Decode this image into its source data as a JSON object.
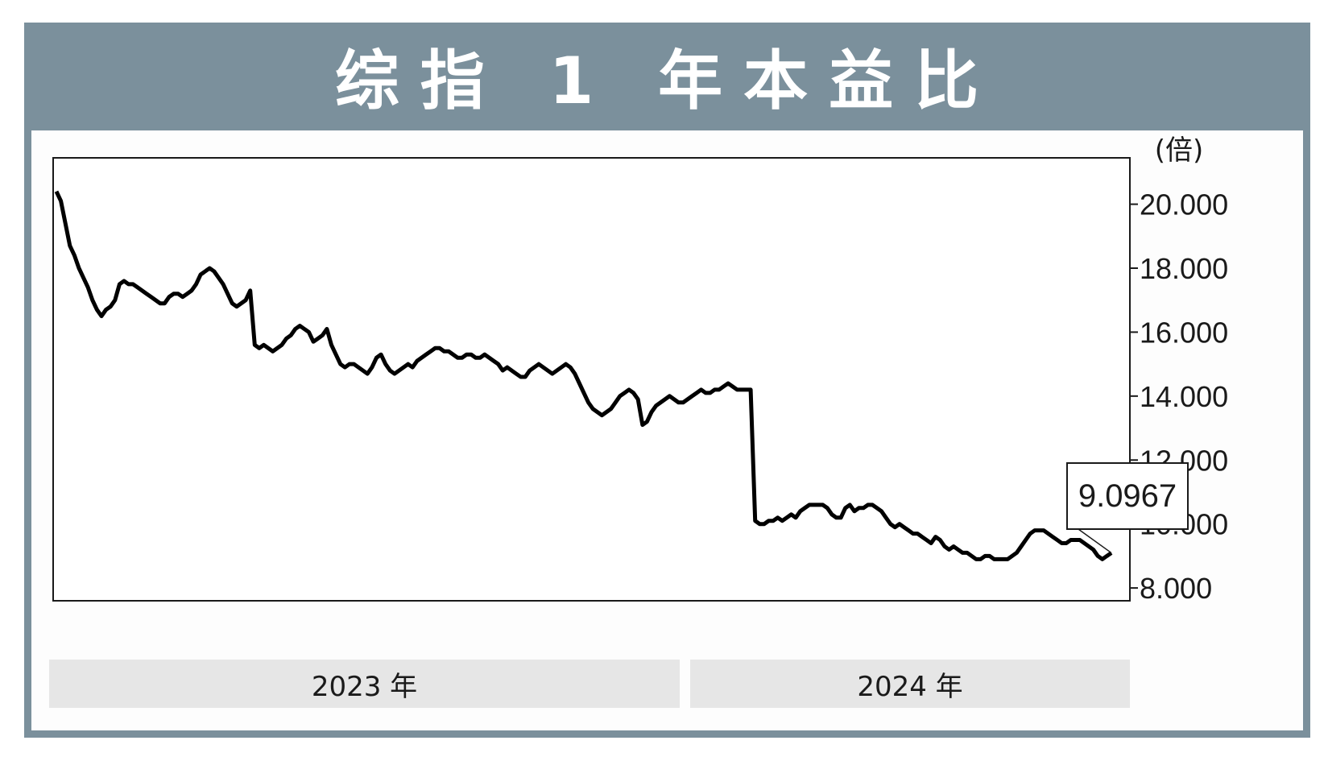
{
  "header": {
    "title": "综指 1 年本益比"
  },
  "callout": {
    "value": "9.0967"
  },
  "colors": {
    "frame": "#7b909c",
    "line": "#000000",
    "year_band": "#e6e6e6"
  },
  "chart_data": {
    "type": "line",
    "title": "综指 1 年本益比",
    "ylabel": "(倍)",
    "ylim": [
      7.6,
      21.45
    ],
    "y_ticks": [
      8,
      10,
      12,
      14,
      16,
      18,
      20
    ],
    "y_tick_labels": [
      "8.000",
      "10.000",
      "12.000",
      "14.000",
      "16.000",
      "18.000",
      "20.000"
    ],
    "x_period_labels": [
      "2023 年",
      "2024 年"
    ],
    "annotation": "9.0967",
    "grid": false,
    "y_axis_position": "right",
    "series": [
      {
        "values": [
          20.4,
          20.1,
          19.4,
          18.7,
          18.4,
          18.0,
          17.7,
          17.4,
          17.0,
          16.7,
          16.5,
          16.7,
          16.8,
          17.0,
          17.5,
          17.6,
          17.5,
          17.5,
          17.4,
          17.3,
          17.2,
          17.1,
          17.0,
          16.9,
          16.9,
          17.1,
          17.2,
          17.2,
          17.1,
          17.2,
          17.3,
          17.5,
          17.8,
          17.9,
          18.0,
          17.9,
          17.7,
          17.5,
          17.2,
          16.9,
          16.8,
          16.9,
          17.0,
          17.3,
          15.6,
          15.5,
          15.6,
          15.5,
          15.4,
          15.5,
          15.6,
          15.8,
          15.9,
          16.1,
          16.2,
          16.1,
          16.0,
          15.7,
          15.8,
          15.9,
          16.1,
          15.6,
          15.3,
          15.0,
          14.9,
          15.0,
          15.0,
          14.9,
          14.8,
          14.7,
          14.9,
          15.2,
          15.3,
          15.0,
          14.8,
          14.7,
          14.8,
          14.9,
          15.0,
          14.9,
          15.1,
          15.2,
          15.3,
          15.4,
          15.5,
          15.5,
          15.4,
          15.4,
          15.3,
          15.2,
          15.2,
          15.3,
          15.3,
          15.2,
          15.2,
          15.3,
          15.2,
          15.1,
          15.0,
          14.8,
          14.9,
          14.8,
          14.7,
          14.6,
          14.6,
          14.8,
          14.9,
          15.0,
          14.9,
          14.8,
          14.7,
          14.8,
          14.9,
          15.0,
          14.9,
          14.7,
          14.4,
          14.1,
          13.8,
          13.6,
          13.5,
          13.4,
          13.5,
          13.6,
          13.8,
          14.0,
          14.1,
          14.2,
          14.1,
          13.9,
          13.1,
          13.2,
          13.5,
          13.7,
          13.8,
          13.9,
          14.0,
          13.9,
          13.8,
          13.8,
          13.9,
          14.0,
          14.1,
          14.2,
          14.1,
          14.1,
          14.2,
          14.2,
          14.3,
          14.4,
          14.3,
          14.2,
          14.2,
          14.2,
          14.2,
          10.1,
          10.0,
          10.0,
          10.1,
          10.1,
          10.2,
          10.1,
          10.2,
          10.3,
          10.2,
          10.4,
          10.5,
          10.6,
          10.6,
          10.6,
          10.6,
          10.5,
          10.3,
          10.2,
          10.2,
          10.5,
          10.6,
          10.4,
          10.5,
          10.5,
          10.6,
          10.6,
          10.5,
          10.4,
          10.2,
          10.0,
          9.9,
          10.0,
          9.9,
          9.8,
          9.7,
          9.7,
          9.6,
          9.5,
          9.4,
          9.6,
          9.5,
          9.3,
          9.2,
          9.3,
          9.2,
          9.1,
          9.1,
          9.0,
          8.9,
          8.9,
          9.0,
          9.0,
          8.9,
          8.9,
          8.9,
          8.9,
          9.0,
          9.1,
          9.3,
          9.5,
          9.7,
          9.8,
          9.8,
          9.8,
          9.7,
          9.6,
          9.5,
          9.4,
          9.4,
          9.5,
          9.5,
          9.5,
          9.4,
          9.3,
          9.2,
          9.0,
          8.9,
          9.0,
          9.0967
        ]
      }
    ]
  }
}
